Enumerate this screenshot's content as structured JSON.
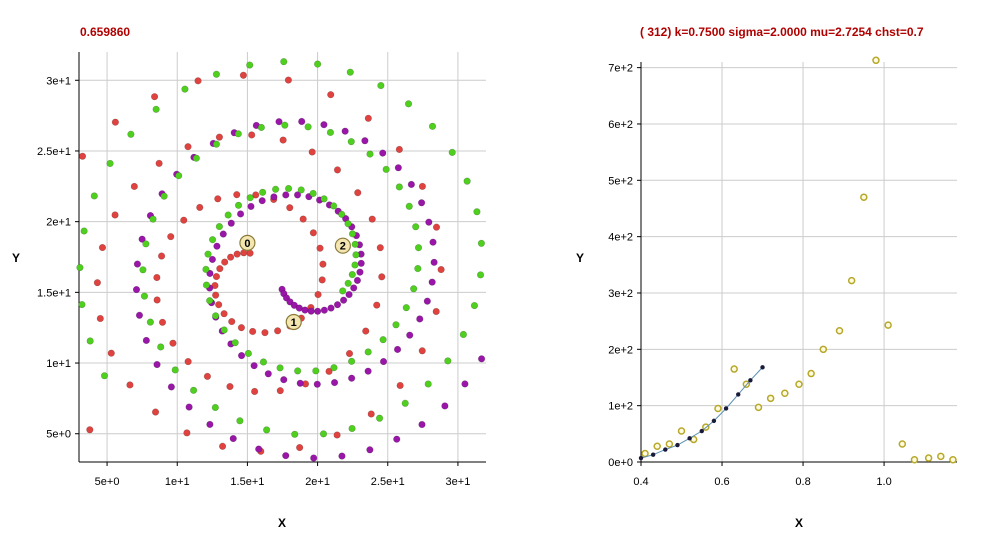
{
  "chart_data": [
    {
      "type": "scatter",
      "title": "0.659860",
      "xlabel": "X",
      "ylabel": "Y",
      "xlim": [
        3.0,
        32.0
      ],
      "ylim": [
        3.0,
        32.0
      ],
      "xticks": [
        5,
        10,
        15,
        20,
        25,
        30
      ],
      "xtick_labels": [
        "5e+0",
        "1e+1",
        "1.5e+1",
        "2e+1",
        "2.5e+1",
        "3e+1"
      ],
      "yticks": [
        5,
        10,
        15,
        20,
        25,
        30
      ],
      "ytick_labels": [
        "5e+0",
        "1e+1",
        "1.5e+1",
        "2e+1",
        "2.5e+1",
        "3e+1"
      ],
      "grid": true,
      "series": [
        {
          "color": "#e0433f",
          "spiral": {
            "cx": 15.5,
            "cy": 16.0,
            "r0": 1.8,
            "r1": 16.8,
            "a0": 100,
            "a1": 1380,
            "n": 100
          }
        },
        {
          "color": "#9a16a8",
          "spiral": {
            "cx": 19.0,
            "cy": 16.5,
            "r0": 2.0,
            "r1": 14.5,
            "a0": 220,
            "a1": 1080,
            "n": 100
          }
        },
        {
          "color": "#4fcf1e",
          "spiral": {
            "cx": 18.5,
            "cy": 17.0,
            "r0": 3.8,
            "r1": 15.8,
            "a0": 330,
            "a1": 1290,
            "n": 100
          }
        }
      ],
      "annotations": [
        {
          "label": "0",
          "x": 15.0,
          "y": 18.5
        },
        {
          "label": "1",
          "x": 18.3,
          "y": 12.9
        },
        {
          "label": "2",
          "x": 21.8,
          "y": 18.3
        }
      ]
    },
    {
      "type": "scatter",
      "title": "( 312) k=0.7500 sigma=2.0000 mu=2.7254 chst=0.7",
      "xlabel": "X",
      "ylabel": "Y",
      "xlim": [
        0.4,
        1.18
      ],
      "ylim": [
        0,
        710
      ],
      "xticks": [
        0.4,
        0.6,
        0.8,
        1.0
      ],
      "xtick_labels": [
        "0.4",
        "0.6",
        "0.8",
        "1.0"
      ],
      "yticks": [
        0,
        100,
        200,
        300,
        400,
        500,
        600,
        700
      ],
      "ytick_labels": [
        "0e+0",
        "1e+2",
        "2e+2",
        "3e+2",
        "4e+2",
        "5e+2",
        "6e+2",
        "7e+2"
      ],
      "grid": true,
      "series": [
        {
          "style": "hollow",
          "color": "#b7a82a",
          "x": [
            0.41,
            0.44,
            0.47,
            0.5,
            0.53,
            0.56,
            0.59,
            0.63,
            0.66,
            0.69,
            0.72,
            0.755,
            0.79,
            0.82,
            0.85,
            0.89,
            0.92,
            0.95,
            0.98,
            1.01,
            1.045,
            1.075,
            1.11,
            1.14,
            1.17
          ],
          "y": [
            15,
            28,
            32,
            55,
            40,
            62,
            95,
            165,
            138,
            97,
            113,
            122,
            138,
            157,
            200,
            233,
            322,
            470,
            713,
            243,
            32,
            4,
            7,
            10,
            4
          ]
        },
        {
          "style": "line",
          "color": "#1a1a3a",
          "x": [
            0.4,
            0.43,
            0.46,
            0.49,
            0.52,
            0.55,
            0.58,
            0.61,
            0.64,
            0.67,
            0.7
          ],
          "y": [
            7,
            13,
            22,
            30,
            42,
            55,
            73,
            95,
            120,
            145,
            168
          ]
        }
      ]
    }
  ]
}
